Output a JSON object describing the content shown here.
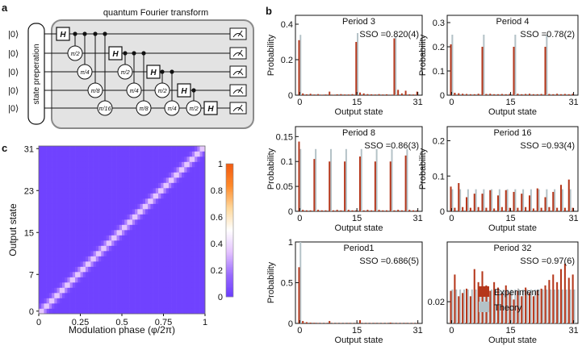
{
  "panel_labels": {
    "a": "a",
    "b": "b",
    "c": "c"
  },
  "circuit": {
    "title": "quantum Fourier transform",
    "state_prep": "state preperation",
    "inputs": [
      "|0⟩",
      "|0⟩",
      "|0⟩",
      "|0⟩",
      "|0⟩"
    ],
    "h_label": "H",
    "phase_labels": [
      "π/2",
      "π/4",
      "π/8",
      "π/16"
    ]
  },
  "colors": {
    "experiment": "#b5371b",
    "theory": "#b4c2c7"
  },
  "legend": {
    "experiment": "Experiment",
    "theory": "Theory"
  },
  "chart_data": [
    {
      "type": "bar",
      "id": "p3",
      "title": "Period 3",
      "sso": "SSO =0.820(4)",
      "xlabel": "Output state",
      "ylabel": "Probability",
      "ylim": [
        0,
        0.45
      ],
      "yticks": [
        "0",
        "0.2",
        "0.4"
      ],
      "ytick_values": [
        0,
        0.2,
        0.4
      ],
      "xticks": [
        "0",
        "15",
        "31"
      ],
      "xtick_values": [
        0,
        15,
        31
      ],
      "series": [
        {
          "name": "Experiment",
          "values": [
            0.31,
            0.01,
            0.005,
            0.008,
            0.004,
            0.006,
            0.003,
            0.004,
            0.02,
            0.003,
            0.005,
            0.006,
            0.004,
            0.004,
            0.006,
            0.3,
            0.015,
            0.01,
            0.006,
            0.005,
            0.004,
            0.006,
            0.004,
            0.005,
            0.003,
            0.32,
            0.03,
            0.01,
            0.025,
            0.005,
            0.004,
            0.02
          ]
        },
        {
          "name": "Theory",
          "values": [
            0.34,
            0,
            0,
            0,
            0,
            0,
            0,
            0,
            0,
            0,
            0,
            0,
            0,
            0,
            0,
            0.35,
            0,
            0,
            0,
            0,
            0,
            0,
            0,
            0,
            0,
            0.33,
            0,
            0,
            0,
            0,
            0,
            0
          ]
        }
      ]
    },
    {
      "type": "bar",
      "id": "p4",
      "title": "Period 4",
      "sso": "SSO =0.78(2)",
      "xlabel": "Output state",
      "ylabel": "Probability",
      "ylim": [
        0,
        0.33
      ],
      "yticks": [
        "0",
        "0.1",
        "0.2",
        "0.3"
      ],
      "ytick_values": [
        0,
        0.1,
        0.2,
        0.3
      ],
      "xticks": [
        "0",
        "15",
        "31"
      ],
      "xtick_values": [
        0,
        15,
        31
      ],
      "series": [
        {
          "name": "Experiment",
          "values": [
            0.21,
            0.01,
            0.008,
            0.006,
            0.005,
            0.004,
            0.004,
            0.006,
            0.2,
            0.005,
            0.006,
            0.004,
            0.004,
            0.005,
            0.004,
            0.006,
            0.2,
            0.006,
            0.004,
            0.005,
            0.006,
            0.004,
            0.004,
            0.005,
            0.2,
            0.005,
            0.004,
            0.006,
            0.004,
            0.005,
            0.004,
            0.006
          ]
        },
        {
          "name": "Theory",
          "values": [
            0.25,
            0,
            0,
            0,
            0,
            0,
            0,
            0,
            0.25,
            0,
            0,
            0,
            0,
            0,
            0,
            0,
            0.25,
            0,
            0,
            0,
            0,
            0,
            0,
            0,
            0.25,
            0,
            0,
            0,
            0,
            0,
            0,
            0
          ]
        }
      ]
    },
    {
      "type": "bar",
      "id": "p8",
      "title": "Period 8",
      "sso": "SSO =0.86(3)",
      "xlabel": "Output state",
      "ylabel": "Probability",
      "ylim": [
        0,
        0.17
      ],
      "yticks": [
        "0",
        "0.05",
        "0.1",
        "0.15"
      ],
      "ytick_values": [
        0,
        0.05,
        0.1,
        0.15
      ],
      "xticks": [
        "0",
        "15",
        "31"
      ],
      "xtick_values": [
        0,
        15,
        31
      ],
      "series": [
        {
          "name": "Experiment",
          "values": [
            0.14,
            0.003,
            0.002,
            0.002,
            0.105,
            0.003,
            0.002,
            0.002,
            0.1,
            0.002,
            0.003,
            0.002,
            0.1,
            0.003,
            0.002,
            0.002,
            0.11,
            0.002,
            0.003,
            0.002,
            0.1,
            0.003,
            0.002,
            0.002,
            0.1,
            0.002,
            0.003,
            0.002,
            0.112,
            0.003,
            0.002,
            0.002
          ]
        },
        {
          "name": "Theory",
          "values": [
            0.125,
            0,
            0,
            0,
            0.125,
            0,
            0,
            0,
            0.125,
            0,
            0,
            0,
            0.125,
            0,
            0,
            0,
            0.125,
            0,
            0,
            0,
            0.125,
            0,
            0,
            0,
            0.125,
            0,
            0,
            0,
            0.125,
            0,
            0,
            0
          ]
        }
      ]
    },
    {
      "type": "bar",
      "id": "p16",
      "title": "Period 16",
      "sso": "SSO =0.93(4)",
      "xlabel": "Output state",
      "ylabel": "Probability",
      "ylim": [
        0,
        0.24
      ],
      "yticks": [
        "0",
        "0.1",
        "0.2"
      ],
      "ytick_values": [
        0,
        0.1,
        0.2
      ],
      "xticks": [
        "0",
        "15",
        "31"
      ],
      "xtick_values": [
        0,
        15,
        31
      ],
      "series": [
        {
          "name": "Experiment",
          "values": [
            0.07,
            0.01,
            0.08,
            0.012,
            0.04,
            0.01,
            0.05,
            0.012,
            0.05,
            0.01,
            0.06,
            0.008,
            0.045,
            0.012,
            0.06,
            0.01,
            0.055,
            0.01,
            0.05,
            0.012,
            0.045,
            0.008,
            0.065,
            0.01,
            0.04,
            0.012,
            0.055,
            0.01,
            0.075,
            0.01,
            0.09,
            0.01
          ]
        },
        {
          "name": "Theory",
          "values": [
            0.0625,
            0,
            0.0625,
            0,
            0.0625,
            0,
            0.0625,
            0,
            0.0625,
            0,
            0.0625,
            0,
            0.0625,
            0,
            0.0625,
            0,
            0.0625,
            0,
            0.0625,
            0,
            0.0625,
            0,
            0.0625,
            0,
            0.0625,
            0,
            0.0625,
            0,
            0.0625,
            0,
            0.0625,
            0
          ]
        }
      ]
    },
    {
      "type": "bar",
      "id": "p1",
      "title": "Period1",
      "sso": "SSO =0.686(5)",
      "xlabel": "Output state",
      "ylabel": "Probability",
      "ylim": [
        0,
        1.0
      ],
      "yticks": [
        "0",
        "0.5",
        "1"
      ],
      "ytick_values": [
        0,
        0.5,
        1
      ],
      "xticks": [
        "0",
        "15",
        "31"
      ],
      "xtick_values": [
        0,
        15,
        31
      ],
      "series": [
        {
          "name": "Experiment",
          "values": [
            0.69,
            0.03,
            0.015,
            0.01,
            0.008,
            0.006,
            0.005,
            0.005,
            0.03,
            0.005,
            0.004,
            0.005,
            0.004,
            0.006,
            0.004,
            0.005,
            0.04,
            0.005,
            0.004,
            0.005,
            0.006,
            0.004,
            0.005,
            0.004,
            0.01,
            0.004,
            0.005,
            0.004,
            0.006,
            0.005,
            0.004,
            0.005
          ]
        },
        {
          "name": "Theory",
          "values": [
            1,
            0,
            0,
            0,
            0,
            0,
            0,
            0,
            0,
            0,
            0,
            0,
            0,
            0,
            0,
            0,
            0,
            0,
            0,
            0,
            0,
            0,
            0,
            0,
            0,
            0,
            0,
            0,
            0,
            0,
            0,
            0
          ]
        }
      ]
    },
    {
      "type": "bar",
      "id": "p32",
      "title": "Period 32",
      "sso": "SSO =0.97(6)",
      "xlabel": "Output state",
      "ylabel": "",
      "ylim": [
        0,
        0.075
      ],
      "yticks": [
        "0.02"
      ],
      "ytick_values": [
        0.02
      ],
      "xticks": [
        "0",
        "15",
        "31"
      ],
      "xtick_values": [
        0,
        15,
        31
      ],
      "series": [
        {
          "name": "Experiment",
          "values": [
            0.03,
            0.045,
            0.025,
            0.028,
            0.032,
            0.025,
            0.05,
            0.038,
            0.048,
            0.035,
            0.03,
            0.038,
            0.033,
            0.028,
            0.035,
            0.028,
            0.022,
            0.03,
            0.025,
            0.033,
            0.028,
            0.025,
            0.03,
            0.032,
            0.035,
            0.04,
            0.045,
            0.038,
            0.05,
            0.055,
            0.042,
            0.045
          ]
        },
        {
          "name": "Theory",
          "values": [
            0.03125,
            0.03125,
            0.03125,
            0.03125,
            0.03125,
            0.03125,
            0.03125,
            0.03125,
            0.03125,
            0.03125,
            0.03125,
            0.03125,
            0.03125,
            0.03125,
            0.03125,
            0.03125,
            0.03125,
            0.03125,
            0.03125,
            0.03125,
            0.03125,
            0.03125,
            0.03125,
            0.03125,
            0.03125,
            0.03125,
            0.03125,
            0.03125,
            0.03125,
            0.03125,
            0.03125,
            0.03125
          ]
        }
      ]
    },
    {
      "type": "heatmap",
      "id": "c",
      "xlabel": "Modulation phase (φ/2π)",
      "ylabel": "Output state",
      "xticks": [
        "0",
        "0.25",
        "0.5",
        "0.75",
        "1"
      ],
      "xtick_values": [
        0,
        0.25,
        0.5,
        0.75,
        1
      ],
      "yticks": [
        "0",
        "7",
        "15",
        "23",
        "31"
      ],
      "ytick_values": [
        0,
        7,
        15,
        23,
        31
      ],
      "xlim": [
        0,
        1
      ],
      "ylim": [
        0,
        32
      ],
      "description_values": "diagonal: output state ≈ 32·phase",
      "diag_peak": 0.35,
      "background": 0.02,
      "colorbar": {
        "ticks": [
          "1",
          "0.8",
          "0.6",
          "0.4",
          "0.2",
          "0"
        ],
        "tick_values": [
          1,
          0.8,
          0.6,
          0.4,
          0.2,
          0
        ],
        "colors": [
          "#6a3cff",
          "#9a6bff",
          "#e3c2ff",
          "#ffffff",
          "#ffd79a",
          "#ff8a2a",
          "#f25a10"
        ]
      }
    }
  ]
}
